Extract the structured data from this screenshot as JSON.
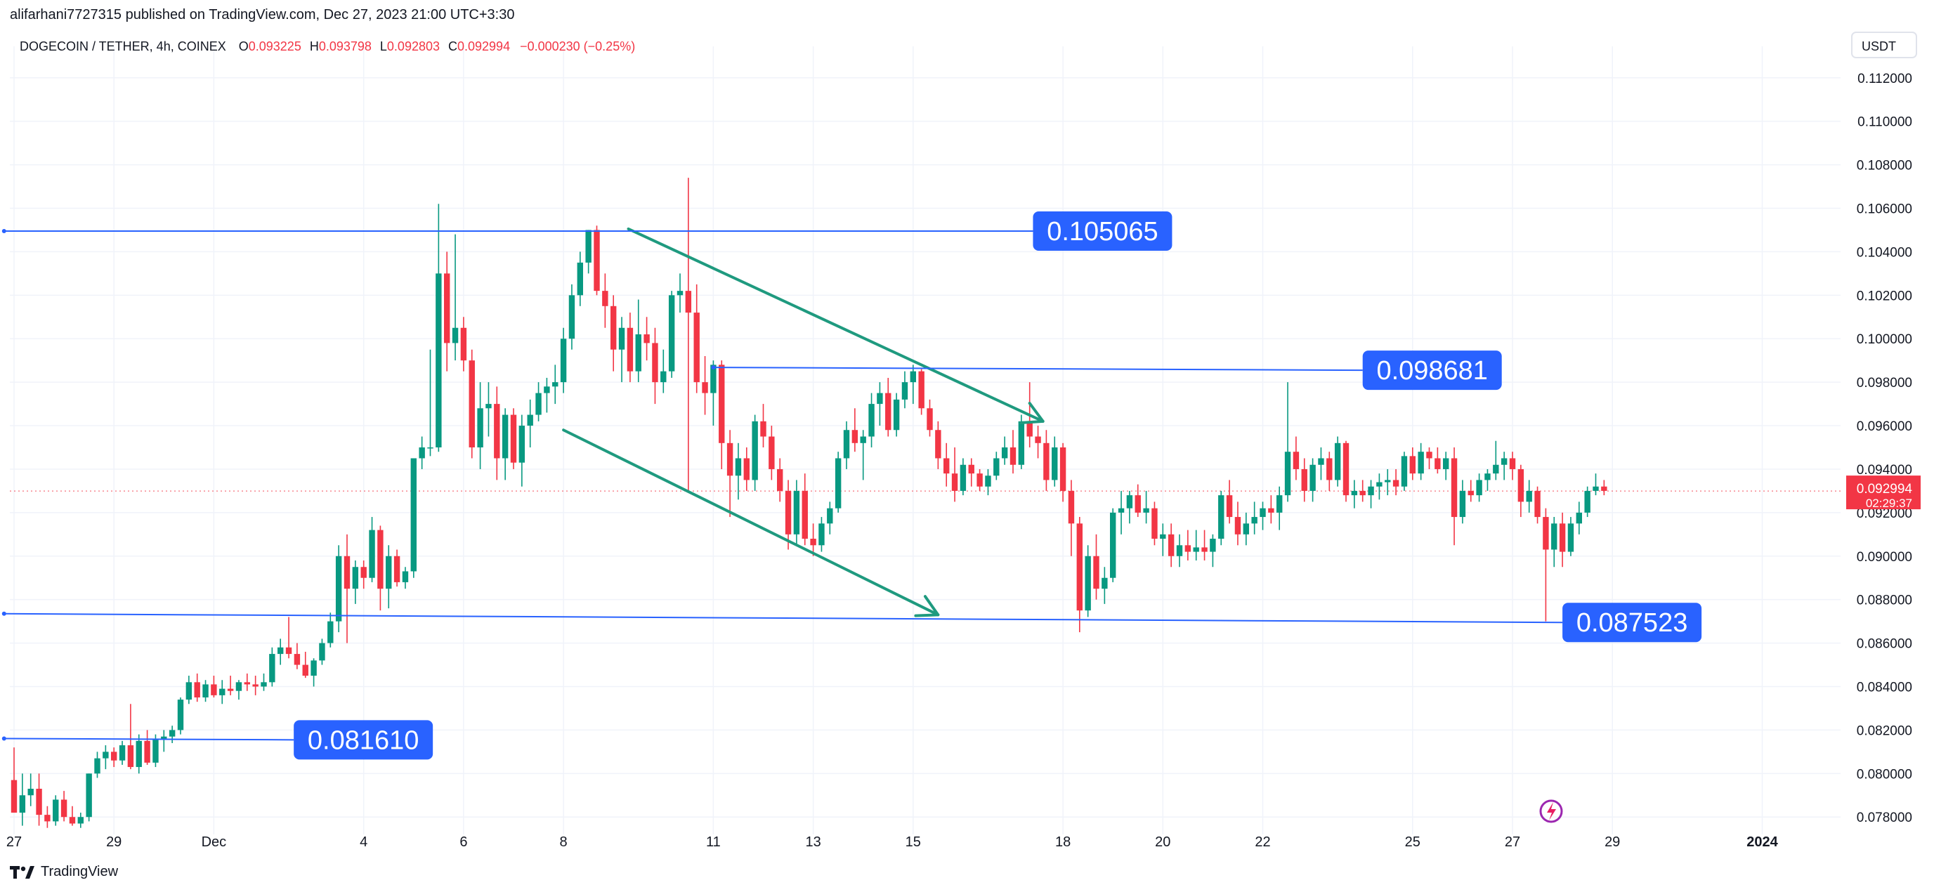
{
  "header": {
    "published_text": "alifarhani7727315 published on TradingView.com, Dec 27, 2023 21:00 UTC+3:30"
  },
  "footer": {
    "brand": "TradingView"
  },
  "colors": {
    "up": "#089981",
    "down": "#f23645",
    "level": "#2962ff",
    "arrow": "#1f9a7f",
    "grid": "#f0f3fa",
    "price_badge": "#f23645"
  },
  "chart_data": {
    "type": "candlestick",
    "symbol_line": {
      "symbol": "DOGECOIN / TETHER, 4h, COINEX",
      "open_label": "O",
      "open": "0.093225",
      "high_label": "H",
      "high": "0.093798",
      "low_label": "L",
      "low": "0.092803",
      "close_label": "C",
      "close": "0.092994",
      "change": "−0.000230 (−0.25%)"
    },
    "currency": "USDT",
    "ylim": [
      0.0772,
      0.1128
    ],
    "y_ticks": [
      "0.078000",
      "0.080000",
      "0.082000",
      "0.084000",
      "0.086000",
      "0.088000",
      "0.090000",
      "0.092000",
      "0.094000",
      "0.096000",
      "0.098000",
      "0.100000",
      "0.102000",
      "0.104000",
      "0.106000",
      "0.108000",
      "0.110000",
      "0.112000"
    ],
    "x_ticks": [
      {
        "label": "27",
        "day": 0
      },
      {
        "label": "29",
        "day": 2
      },
      {
        "label": "Dec",
        "day": 4
      },
      {
        "label": "4",
        "day": 7
      },
      {
        "label": "6",
        "day": 9
      },
      {
        "label": "8",
        "day": 11
      },
      {
        "label": "11",
        "day": 14
      },
      {
        "label": "13",
        "day": 16
      },
      {
        "label": "15",
        "day": 18
      },
      {
        "label": "18",
        "day": 21
      },
      {
        "label": "20",
        "day": 23
      },
      {
        "label": "22",
        "day": 25
      },
      {
        "label": "25",
        "day": 28
      },
      {
        "label": "27",
        "day": 30
      },
      {
        "label": "29",
        "day": 32
      },
      {
        "label": "2024",
        "day": 35
      }
    ],
    "last_price": {
      "value": 0.092994,
      "label": "0.092994",
      "countdown": "02:29:37"
    },
    "levels": [
      {
        "label": "0.105065",
        "start": [
          -0.2,
          0.10495
        ],
        "end": [
          20.4,
          0.10495
        ]
      },
      {
        "label": "0.098681",
        "start": [
          14.0,
          0.09868
        ],
        "end": [
          27.0,
          0.09855
        ]
      },
      {
        "label": "0.087523",
        "start": [
          -0.2,
          0.08735
        ],
        "end": [
          31.0,
          0.08695
        ]
      },
      {
        "label": "0.081610",
        "start": [
          -0.2,
          0.08161
        ],
        "end": [
          5.6,
          0.08155
        ]
      }
    ],
    "arrows": [
      {
        "from": [
          12.3,
          0.10505
        ],
        "to": [
          20.6,
          0.0962
        ]
      },
      {
        "from": [
          11.0,
          0.0958
        ],
        "to": [
          18.5,
          0.0873
        ]
      }
    ],
    "candles": [
      [
        0.0797,
        0.0812,
        0.0782,
        0.0782
      ],
      [
        0.0782,
        0.08,
        0.0776,
        0.079
      ],
      [
        0.079,
        0.08,
        0.0785,
        0.0793
      ],
      [
        0.0793,
        0.08,
        0.0776,
        0.0781
      ],
      [
        0.0781,
        0.0785,
        0.0775,
        0.0778
      ],
      [
        0.0778,
        0.079,
        0.0776,
        0.0788
      ],
      [
        0.0788,
        0.0792,
        0.0778,
        0.078
      ],
      [
        0.078,
        0.0785,
        0.0776,
        0.0777
      ],
      [
        0.0777,
        0.0782,
        0.0775,
        0.078
      ],
      [
        0.078,
        0.08,
        0.0778,
        0.08
      ],
      [
        0.08,
        0.081,
        0.0798,
        0.0807
      ],
      [
        0.0807,
        0.0813,
        0.0802,
        0.081
      ],
      [
        0.081,
        0.0812,
        0.0803,
        0.0806
      ],
      [
        0.0806,
        0.0815,
        0.0804,
        0.0813
      ],
      [
        0.0813,
        0.0832,
        0.0802,
        0.0803
      ],
      [
        0.0803,
        0.0818,
        0.08,
        0.0815
      ],
      [
        0.0815,
        0.082,
        0.0804,
        0.0805
      ],
      [
        0.0805,
        0.0818,
        0.0803,
        0.0816
      ],
      [
        0.0816,
        0.082,
        0.081,
        0.0817
      ],
      [
        0.0817,
        0.0822,
        0.0814,
        0.082
      ],
      [
        0.082,
        0.0835,
        0.0818,
        0.0834
      ],
      [
        0.0834,
        0.0845,
        0.0832,
        0.0842
      ],
      [
        0.0842,
        0.0846,
        0.0833,
        0.0835
      ],
      [
        0.0835,
        0.0843,
        0.0833,
        0.0841
      ],
      [
        0.0841,
        0.0845,
        0.0835,
        0.0836
      ],
      [
        0.0836,
        0.0843,
        0.0832,
        0.0839
      ],
      [
        0.0839,
        0.0845,
        0.0836,
        0.0838
      ],
      [
        0.0838,
        0.0843,
        0.0834,
        0.0842
      ],
      [
        0.0842,
        0.0846,
        0.0838,
        0.0841
      ],
      [
        0.0841,
        0.0845,
        0.0836,
        0.084
      ],
      [
        0.084,
        0.0846,
        0.0838,
        0.0842
      ],
      [
        0.0842,
        0.0858,
        0.084,
        0.0855
      ],
      [
        0.0855,
        0.0862,
        0.085,
        0.0858
      ],
      [
        0.0858,
        0.0872,
        0.0853,
        0.0855
      ],
      [
        0.0855,
        0.086,
        0.0848,
        0.085
      ],
      [
        0.085,
        0.0856,
        0.0844,
        0.0845
      ],
      [
        0.0845,
        0.0853,
        0.084,
        0.0852
      ],
      [
        0.0852,
        0.0862,
        0.085,
        0.086
      ],
      [
        0.086,
        0.0874,
        0.0858,
        0.087
      ],
      [
        0.087,
        0.0905,
        0.0865,
        0.09
      ],
      [
        0.09,
        0.091,
        0.086,
        0.0885
      ],
      [
        0.0885,
        0.0898,
        0.0878,
        0.0895
      ],
      [
        0.0895,
        0.0898,
        0.0885,
        0.089
      ],
      [
        0.089,
        0.0918,
        0.0888,
        0.0912
      ],
      [
        0.0912,
        0.0914,
        0.0875,
        0.0885
      ],
      [
        0.0885,
        0.0905,
        0.0876,
        0.09
      ],
      [
        0.09,
        0.0903,
        0.0886,
        0.0888
      ],
      [
        0.0888,
        0.0895,
        0.0885,
        0.0893
      ],
      [
        0.0893,
        0.0945,
        0.089,
        0.0945
      ],
      [
        0.0945,
        0.0955,
        0.094,
        0.095
      ],
      [
        0.095,
        0.0995,
        0.0946,
        0.095
      ],
      [
        0.095,
        0.1062,
        0.0948,
        0.103
      ],
      [
        0.103,
        0.104,
        0.0985,
        0.0998
      ],
      [
        0.0998,
        0.1048,
        0.099,
        0.1005
      ],
      [
        0.1005,
        0.101,
        0.0985,
        0.099
      ],
      [
        0.099,
        0.0995,
        0.0945,
        0.095
      ],
      [
        0.095,
        0.098,
        0.094,
        0.0968
      ],
      [
        0.0968,
        0.098,
        0.0955,
        0.097
      ],
      [
        0.097,
        0.0978,
        0.0935,
        0.0945
      ],
      [
        0.0945,
        0.0968,
        0.0935,
        0.0965
      ],
      [
        0.0965,
        0.0968,
        0.094,
        0.0943
      ],
      [
        0.0943,
        0.0965,
        0.0932,
        0.096
      ],
      [
        0.096,
        0.0972,
        0.095,
        0.0965
      ],
      [
        0.0965,
        0.098,
        0.0962,
        0.0975
      ],
      [
        0.0975,
        0.0982,
        0.0966,
        0.0978
      ],
      [
        0.0978,
        0.0988,
        0.097,
        0.098
      ],
      [
        0.098,
        0.1005,
        0.0975,
        0.1
      ],
      [
        0.1,
        0.1025,
        0.0995,
        0.102
      ],
      [
        0.102,
        0.104,
        0.1015,
        0.1035
      ],
      [
        0.1035,
        0.105,
        0.103,
        0.105
      ],
      [
        0.105,
        0.1052,
        0.102,
        0.1022
      ],
      [
        0.1022,
        0.103,
        0.1005,
        0.1015
      ],
      [
        0.1015,
        0.102,
        0.0985,
        0.0995
      ],
      [
        0.0995,
        0.101,
        0.098,
        0.1005
      ],
      [
        0.1005,
        0.1012,
        0.098,
        0.0985
      ],
      [
        0.0985,
        0.1018,
        0.098,
        0.1002
      ],
      [
        0.1002,
        0.101,
        0.099,
        0.0998
      ],
      [
        0.0998,
        0.1005,
        0.097,
        0.098
      ],
      [
        0.098,
        0.0995,
        0.0975,
        0.0985
      ],
      [
        0.0985,
        0.1022,
        0.0982,
        0.102
      ],
      [
        0.102,
        0.103,
        0.1012,
        0.1022
      ],
      [
        0.1022,
        0.1074,
        0.093,
        0.1012
      ],
      [
        0.1012,
        0.1025,
        0.0975,
        0.098
      ],
      [
        0.098,
        0.0992,
        0.0965,
        0.0975
      ],
      [
        0.0975,
        0.099,
        0.096,
        0.0988
      ],
      [
        0.0988,
        0.099,
        0.094,
        0.0952
      ],
      [
        0.0952,
        0.0958,
        0.0918,
        0.0937
      ],
      [
        0.0937,
        0.0952,
        0.0926,
        0.0945
      ],
      [
        0.0945,
        0.095,
        0.093,
        0.0935
      ],
      [
        0.0935,
        0.0965,
        0.093,
        0.0962
      ],
      [
        0.0962,
        0.097,
        0.095,
        0.0955
      ],
      [
        0.0955,
        0.096,
        0.0935,
        0.094
      ],
      [
        0.094,
        0.0945,
        0.0925,
        0.093
      ],
      [
        0.093,
        0.0935,
        0.0903,
        0.091
      ],
      [
        0.091,
        0.0935,
        0.0905,
        0.093
      ],
      [
        0.093,
        0.0938,
        0.0905,
        0.0908
      ],
      [
        0.0908,
        0.0915,
        0.09,
        0.0905
      ],
      [
        0.0905,
        0.0918,
        0.0902,
        0.0915
      ],
      [
        0.0915,
        0.0925,
        0.091,
        0.0922
      ],
      [
        0.0922,
        0.0948,
        0.092,
        0.0945
      ],
      [
        0.0945,
        0.0962,
        0.094,
        0.0958
      ],
      [
        0.0958,
        0.0968,
        0.0948,
        0.0952
      ],
      [
        0.0952,
        0.0958,
        0.0935,
        0.0955
      ],
      [
        0.0955,
        0.0975,
        0.095,
        0.097
      ],
      [
        0.097,
        0.098,
        0.096,
        0.0975
      ],
      [
        0.0975,
        0.0982,
        0.0955,
        0.0958
      ],
      [
        0.0958,
        0.0975,
        0.0955,
        0.0972
      ],
      [
        0.0972,
        0.0985,
        0.0968,
        0.098
      ],
      [
        0.098,
        0.0988,
        0.097,
        0.0985
      ],
      [
        0.0985,
        0.0986,
        0.0965,
        0.0968
      ],
      [
        0.0968,
        0.0972,
        0.0955,
        0.0958
      ],
      [
        0.0958,
        0.0962,
        0.094,
        0.0945
      ],
      [
        0.0945,
        0.0952,
        0.0932,
        0.0938
      ],
      [
        0.0938,
        0.095,
        0.0925,
        0.093
      ],
      [
        0.093,
        0.0945,
        0.0928,
        0.0942
      ],
      [
        0.0942,
        0.0945,
        0.0932,
        0.0938
      ],
      [
        0.0938,
        0.094,
        0.093,
        0.0932
      ],
      [
        0.0932,
        0.094,
        0.0928,
        0.0937
      ],
      [
        0.0937,
        0.0948,
        0.0935,
        0.0945
      ],
      [
        0.0945,
        0.0955,
        0.0942,
        0.095
      ],
      [
        0.095,
        0.0958,
        0.0938,
        0.0942
      ],
      [
        0.0942,
        0.0965,
        0.094,
        0.0962
      ],
      [
        0.0962,
        0.098,
        0.095,
        0.0955
      ],
      [
        0.0955,
        0.096,
        0.0945,
        0.0952
      ],
      [
        0.0952,
        0.0958,
        0.093,
        0.0935
      ],
      [
        0.0935,
        0.0955,
        0.0932,
        0.095
      ],
      [
        0.095,
        0.0952,
        0.0925,
        0.093
      ],
      [
        0.093,
        0.0935,
        0.09,
        0.0915
      ],
      [
        0.0915,
        0.0918,
        0.0865,
        0.0875
      ],
      [
        0.0875,
        0.0905,
        0.0872,
        0.09
      ],
      [
        0.09,
        0.091,
        0.088,
        0.0885
      ],
      [
        0.0885,
        0.0895,
        0.0878,
        0.089
      ],
      [
        0.089,
        0.0922,
        0.0888,
        0.092
      ],
      [
        0.092,
        0.093,
        0.091,
        0.0922
      ],
      [
        0.0922,
        0.093,
        0.0915,
        0.0928
      ],
      [
        0.0928,
        0.0933,
        0.0918,
        0.092
      ],
      [
        0.092,
        0.093,
        0.0915,
        0.0922
      ],
      [
        0.0922,
        0.0925,
        0.0905,
        0.0908
      ],
      [
        0.0908,
        0.0915,
        0.09,
        0.091
      ],
      [
        0.091,
        0.0915,
        0.0895,
        0.09
      ],
      [
        0.09,
        0.091,
        0.0895,
        0.0905
      ],
      [
        0.0905,
        0.0912,
        0.0898,
        0.0902
      ],
      [
        0.0902,
        0.0912,
        0.0898,
        0.0904
      ],
      [
        0.0904,
        0.0912,
        0.0898,
        0.0902
      ],
      [
        0.0902,
        0.091,
        0.0895,
        0.0908
      ],
      [
        0.0908,
        0.093,
        0.0905,
        0.0928
      ],
      [
        0.0928,
        0.0935,
        0.0915,
        0.0918
      ],
      [
        0.0918,
        0.0925,
        0.0905,
        0.091
      ],
      [
        0.091,
        0.092,
        0.0905,
        0.0915
      ],
      [
        0.0915,
        0.0925,
        0.091,
        0.0918
      ],
      [
        0.0918,
        0.0925,
        0.0912,
        0.0922
      ],
      [
        0.0922,
        0.0928,
        0.0915,
        0.092
      ],
      [
        0.092,
        0.0932,
        0.0912,
        0.0928
      ],
      [
        0.0928,
        0.098,
        0.0925,
        0.0948
      ],
      [
        0.0948,
        0.0955,
        0.0935,
        0.094
      ],
      [
        0.094,
        0.0945,
        0.0925,
        0.093
      ],
      [
        0.093,
        0.0945,
        0.0925,
        0.0942
      ],
      [
        0.0942,
        0.095,
        0.0935,
        0.0945
      ],
      [
        0.0945,
        0.0948,
        0.093,
        0.0935
      ],
      [
        0.0935,
        0.0955,
        0.0932,
        0.0952
      ],
      [
        0.0952,
        0.0953,
        0.0925,
        0.0928
      ],
      [
        0.0928,
        0.0935,
        0.0922,
        0.093
      ],
      [
        0.093,
        0.0935,
        0.0925,
        0.0928
      ],
      [
        0.0928,
        0.0935,
        0.0922,
        0.0932
      ],
      [
        0.0932,
        0.0938,
        0.0926,
        0.0934
      ],
      [
        0.0934,
        0.094,
        0.0928,
        0.0935
      ],
      [
        0.0935,
        0.094,
        0.0928,
        0.0932
      ],
      [
        0.0932,
        0.0948,
        0.093,
        0.0946
      ],
      [
        0.0946,
        0.095,
        0.0935,
        0.0938
      ],
      [
        0.0938,
        0.0952,
        0.0935,
        0.0948
      ],
      [
        0.0948,
        0.095,
        0.094,
        0.0945
      ],
      [
        0.0945,
        0.095,
        0.0938,
        0.094
      ],
      [
        0.094,
        0.0948,
        0.0935,
        0.0945
      ],
      [
        0.0945,
        0.095,
        0.0905,
        0.0918
      ],
      [
        0.0918,
        0.0935,
        0.0915,
        0.093
      ],
      [
        0.093,
        0.0935,
        0.0925,
        0.0928
      ],
      [
        0.0928,
        0.0938,
        0.0925,
        0.0935
      ],
      [
        0.0935,
        0.094,
        0.093,
        0.0938
      ],
      [
        0.0938,
        0.0953,
        0.0935,
        0.0942
      ],
      [
        0.0942,
        0.0948,
        0.0935,
        0.0945
      ],
      [
        0.0945,
        0.0948,
        0.0935,
        0.094
      ],
      [
        0.094,
        0.0942,
        0.0918,
        0.0925
      ],
      [
        0.0925,
        0.0935,
        0.092,
        0.093
      ],
      [
        0.093,
        0.0932,
        0.0915,
        0.0918
      ],
      [
        0.0918,
        0.0922,
        0.087,
        0.0903
      ],
      [
        0.0903,
        0.0918,
        0.0895,
        0.0915
      ],
      [
        0.0915,
        0.092,
        0.0895,
        0.0902
      ],
      [
        0.0902,
        0.0918,
        0.09,
        0.0915
      ],
      [
        0.0915,
        0.0925,
        0.091,
        0.092
      ],
      [
        0.092,
        0.0932,
        0.0918,
        0.093
      ],
      [
        0.093,
        0.0938,
        0.0928,
        0.0932
      ],
      [
        0.0932,
        0.0935,
        0.0928,
        0.093
      ]
    ]
  }
}
